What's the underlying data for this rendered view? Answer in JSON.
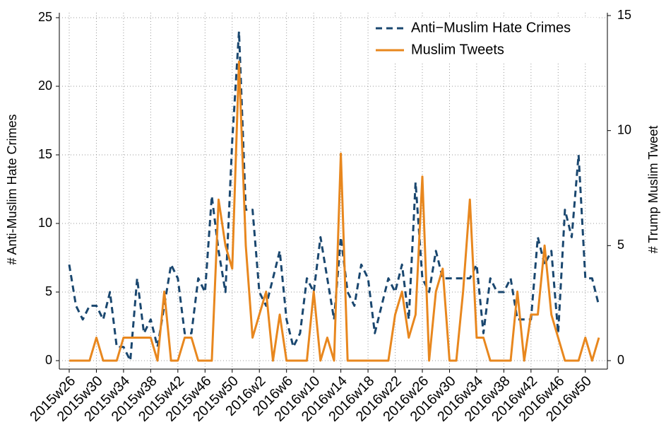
{
  "chart_data": {
    "type": "line",
    "y_label": "# Anti-Muslim Hate Crimes",
    "y2_label": "# Trump Muslim Tweet",
    "categories": [
      "2015w26",
      "2015w27",
      "2015w28",
      "2015w29",
      "2015w30",
      "2015w31",
      "2015w32",
      "2015w33",
      "2015w34",
      "2015w35",
      "2015w36",
      "2015w37",
      "2015w38",
      "2015w39",
      "2015w40",
      "2015w41",
      "2015w42",
      "2015w43",
      "2015w44",
      "2015w45",
      "2015w46",
      "2015w47",
      "2015w48",
      "2015w49",
      "2015w50",
      "2015w51",
      "2015w52",
      "2016w1",
      "2016w2",
      "2016w3",
      "2016w4",
      "2016w5",
      "2016w6",
      "2016w7",
      "2016w8",
      "2016w9",
      "2016w10",
      "2016w11",
      "2016w12",
      "2016w13",
      "2016w14",
      "2016w15",
      "2016w16",
      "2016w17",
      "2016w18",
      "2016w19",
      "2016w20",
      "2016w21",
      "2016w22",
      "2016w23",
      "2016w24",
      "2016w25",
      "2016w26",
      "2016w27",
      "2016w28",
      "2016w29",
      "2016w30",
      "2016w31",
      "2016w32",
      "2016w33",
      "2016w34",
      "2016w35",
      "2016w36",
      "2016w37",
      "2016w38",
      "2016w39",
      "2016w40",
      "2016w41",
      "2016w42",
      "2016w43",
      "2016w44",
      "2016w45",
      "2016w46",
      "2016w47",
      "2016w48",
      "2016w49",
      "2016w50",
      "2016w51",
      "2016w52"
    ],
    "tick_every": 4,
    "series": [
      {
        "name": "Anti−Muslim Hate Crimes",
        "color": "#1a476f",
        "dash": true,
        "values": [
          7,
          4,
          3,
          4,
          4,
          3,
          5,
          1,
          1,
          0,
          6,
          2,
          3,
          1,
          4,
          7,
          6,
          2,
          2,
          6,
          5,
          12,
          8,
          5,
          16,
          24,
          11,
          11,
          5,
          4,
          6,
          8,
          3,
          1,
          2,
          6,
          5,
          9,
          6,
          3,
          9,
          5,
          4,
          7,
          6,
          2,
          4,
          6,
          5,
          7,
          3,
          13,
          6,
          5,
          8,
          6,
          6,
          6,
          6,
          6,
          7,
          2,
          6,
          5,
          5,
          6,
          3,
          3,
          3,
          9,
          7,
          8,
          2,
          11,
          9,
          15,
          6,
          6,
          4
        ]
      },
      {
        "name": "Muslim Tweets",
        "color": "#e8871e",
        "dash": false,
        "axis": "y2",
        "values": [
          0,
          0,
          0,
          0,
          1,
          0,
          0,
          0,
          1,
          1,
          1,
          1,
          1,
          0,
          3,
          0,
          0,
          1,
          1,
          0,
          0,
          0,
          7,
          5,
          4,
          13,
          5,
          1,
          2,
          3,
          0,
          2,
          0,
          0,
          0,
          0,
          3,
          0,
          1,
          0,
          9,
          0,
          0,
          0,
          0,
          0,
          0,
          0,
          2,
          3,
          1,
          2,
          8,
          0,
          3,
          4,
          0,
          0,
          3,
          7,
          1,
          1,
          0,
          0,
          0,
          0,
          3,
          0,
          2,
          2,
          5,
          2,
          1,
          0,
          0,
          0,
          1,
          0,
          1
        ]
      }
    ],
    "ylim": [
      0,
      25
    ],
    "yticks": [
      0,
      5,
      10,
      15,
      20,
      25
    ],
    "y2lim": [
      0,
      15
    ],
    "y2ticks": [
      0,
      5,
      10,
      15
    ],
    "grid": true,
    "legend": "top-right"
  }
}
